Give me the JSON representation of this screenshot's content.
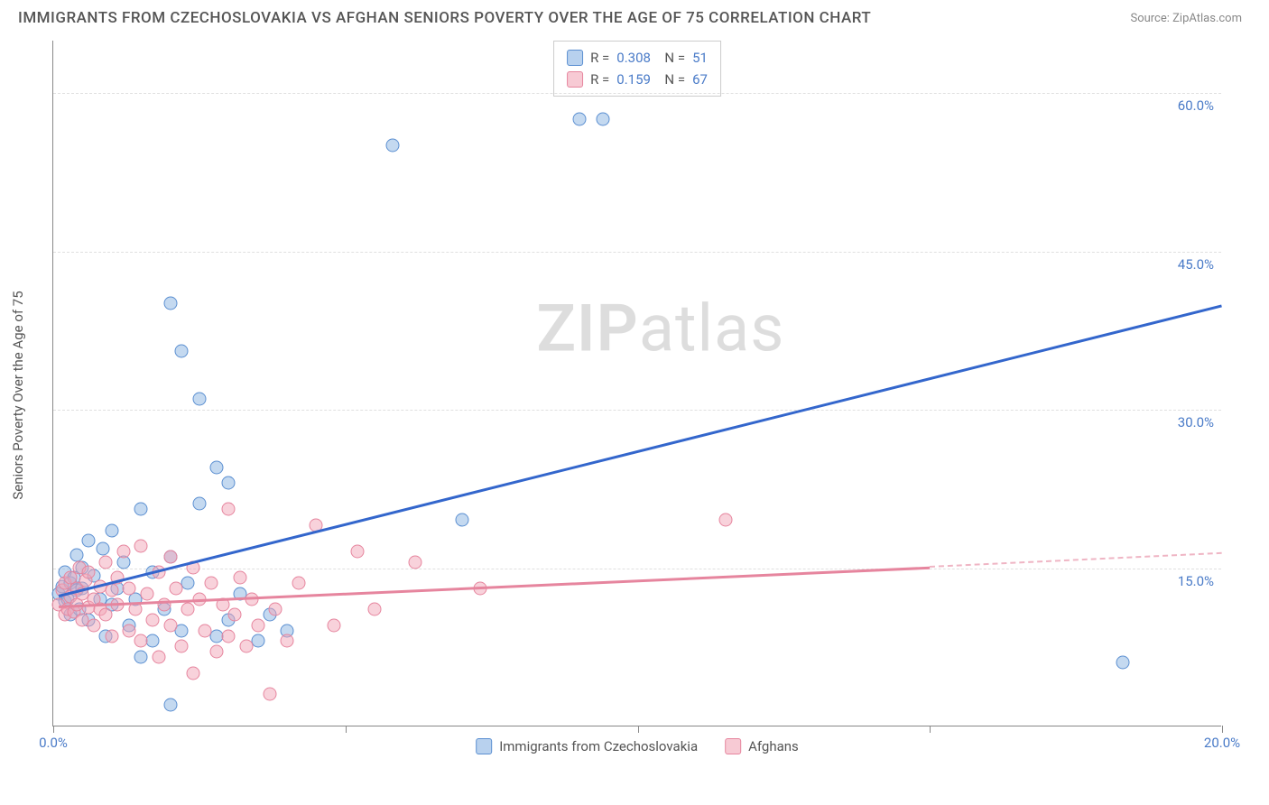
{
  "header": {
    "title": "IMMIGRANTS FROM CZECHOSLOVAKIA VS AFGHAN SENIORS POVERTY OVER THE AGE OF 75 CORRELATION CHART",
    "source": "Source: ZipAtlas.com"
  },
  "chart": {
    "type": "scatter",
    "y_axis_label": "Seniors Poverty Over the Age of 75",
    "xlim": [
      0,
      20
    ],
    "ylim": [
      0,
      65
    ],
    "x_ticks": [
      0,
      5,
      10,
      15,
      20
    ],
    "x_tick_labels": [
      "0.0%",
      "",
      "",
      "",
      "20.0%"
    ],
    "y_ticks": [
      15,
      30,
      45,
      60
    ],
    "y_tick_labels": [
      "15.0%",
      "30.0%",
      "45.0%",
      "60.0%"
    ],
    "background_color": "#ffffff",
    "grid_color": "#e0e0e0",
    "watermark": "ZIPatlas",
    "series": [
      {
        "name": "Immigrants from Czechoslovakia",
        "color_fill": "rgba(137,179,226,0.5)",
        "color_stroke": "#5b8fd1",
        "trend_color": "#3366cc",
        "marker_size": 15,
        "r": "0.308",
        "n": "51",
        "trend": {
          "x1": 0.1,
          "y1": 12.5,
          "x2": 20,
          "y2": 40
        },
        "points": [
          [
            0.1,
            12.5
          ],
          [
            0.15,
            13.2
          ],
          [
            0.2,
            11.8
          ],
          [
            0.2,
            14.5
          ],
          [
            0.25,
            12.0
          ],
          [
            0.3,
            13.5
          ],
          [
            0.3,
            10.5
          ],
          [
            0.35,
            14.0
          ],
          [
            0.4,
            12.8
          ],
          [
            0.4,
            16.2
          ],
          [
            0.45,
            11.0
          ],
          [
            0.5,
            15.0
          ],
          [
            0.5,
            13.0
          ],
          [
            0.6,
            17.5
          ],
          [
            0.6,
            10.0
          ],
          [
            0.7,
            14.2
          ],
          [
            0.8,
            12.0
          ],
          [
            0.85,
            16.8
          ],
          [
            0.9,
            8.5
          ],
          [
            1.0,
            11.5
          ],
          [
            1.0,
            18.5
          ],
          [
            1.1,
            13.0
          ],
          [
            1.2,
            15.5
          ],
          [
            1.3,
            9.5
          ],
          [
            1.4,
            12.0
          ],
          [
            1.5,
            20.5
          ],
          [
            1.7,
            8.0
          ],
          [
            1.7,
            14.5
          ],
          [
            1.9,
            11.0
          ],
          [
            2.0,
            2.0
          ],
          [
            2.0,
            16.0
          ],
          [
            2.0,
            40.0
          ],
          [
            2.2,
            9.0
          ],
          [
            2.2,
            35.5
          ],
          [
            2.3,
            13.5
          ],
          [
            2.5,
            21.0
          ],
          [
            2.5,
            31.0
          ],
          [
            2.8,
            8.5
          ],
          [
            2.8,
            24.5
          ],
          [
            3.0,
            10.0
          ],
          [
            3.0,
            23.0
          ],
          [
            3.2,
            12.5
          ],
          [
            3.5,
            8.0
          ],
          [
            3.7,
            10.5
          ],
          [
            4.0,
            9.0
          ],
          [
            5.8,
            55.0
          ],
          [
            7.0,
            19.5
          ],
          [
            9.0,
            57.5
          ],
          [
            9.4,
            57.5
          ],
          [
            18.3,
            6.0
          ],
          [
            1.5,
            6.5
          ]
        ]
      },
      {
        "name": "Afghans",
        "color_fill": "rgba(241,166,183,0.5)",
        "color_stroke": "#e6859e",
        "trend_color": "#e6859e",
        "marker_size": 15,
        "r": "0.159",
        "n": "67",
        "trend": {
          "x1": 0.1,
          "y1": 11.5,
          "x2": 15,
          "y2": 15.2
        },
        "trend_dashed": {
          "x1": 15,
          "y1": 15.2,
          "x2": 20,
          "y2": 16.5
        },
        "points": [
          [
            0.1,
            11.5
          ],
          [
            0.15,
            12.8
          ],
          [
            0.2,
            10.5
          ],
          [
            0.2,
            13.5
          ],
          [
            0.25,
            11.0
          ],
          [
            0.3,
            12.2
          ],
          [
            0.3,
            14.0
          ],
          [
            0.35,
            10.8
          ],
          [
            0.4,
            13.0
          ],
          [
            0.4,
            11.5
          ],
          [
            0.45,
            15.0
          ],
          [
            0.5,
            12.5
          ],
          [
            0.5,
            10.0
          ],
          [
            0.55,
            13.8
          ],
          [
            0.6,
            11.2
          ],
          [
            0.6,
            14.5
          ],
          [
            0.7,
            12.0
          ],
          [
            0.7,
            9.5
          ],
          [
            0.8,
            13.2
          ],
          [
            0.8,
            11.0
          ],
          [
            0.9,
            15.5
          ],
          [
            0.9,
            10.5
          ],
          [
            1.0,
            12.8
          ],
          [
            1.0,
            8.5
          ],
          [
            1.1,
            14.0
          ],
          [
            1.1,
            11.5
          ],
          [
            1.2,
            16.5
          ],
          [
            1.3,
            9.0
          ],
          [
            1.3,
            13.0
          ],
          [
            1.4,
            11.0
          ],
          [
            1.5,
            17.0
          ],
          [
            1.5,
            8.0
          ],
          [
            1.6,
            12.5
          ],
          [
            1.7,
            10.0
          ],
          [
            1.8,
            14.5
          ],
          [
            1.8,
            6.5
          ],
          [
            1.9,
            11.5
          ],
          [
            2.0,
            16.0
          ],
          [
            2.0,
            9.5
          ],
          [
            2.1,
            13.0
          ],
          [
            2.2,
            7.5
          ],
          [
            2.3,
            11.0
          ],
          [
            2.4,
            15.0
          ],
          [
            2.4,
            5.0
          ],
          [
            2.5,
            12.0
          ],
          [
            2.6,
            9.0
          ],
          [
            2.7,
            13.5
          ],
          [
            2.8,
            7.0
          ],
          [
            2.9,
            11.5
          ],
          [
            3.0,
            20.5
          ],
          [
            3.0,
            8.5
          ],
          [
            3.1,
            10.5
          ],
          [
            3.2,
            14.0
          ],
          [
            3.3,
            7.5
          ],
          [
            3.4,
            12.0
          ],
          [
            3.5,
            9.5
          ],
          [
            3.7,
            3.0
          ],
          [
            3.8,
            11.0
          ],
          [
            4.0,
            8.0
          ],
          [
            4.2,
            13.5
          ],
          [
            4.5,
            19.0
          ],
          [
            4.8,
            9.5
          ],
          [
            5.2,
            16.5
          ],
          [
            5.5,
            11.0
          ],
          [
            6.2,
            15.5
          ],
          [
            7.3,
            13.0
          ],
          [
            11.5,
            19.5
          ]
        ]
      }
    ],
    "legend_bottom": [
      {
        "label": "Immigrants from Czechoslovakia",
        "swatch": "blue"
      },
      {
        "label": "Afghans",
        "swatch": "pink"
      }
    ]
  }
}
